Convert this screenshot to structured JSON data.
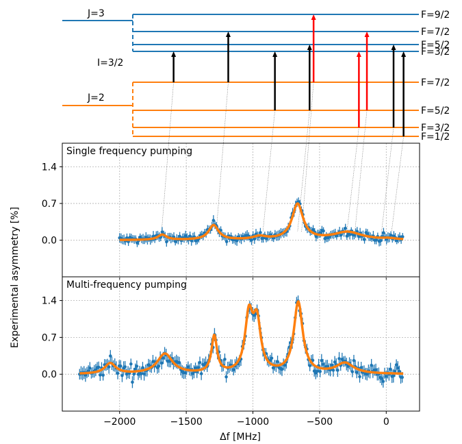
{
  "diagram": {
    "upper_term": "J=3",
    "lower_term": "J=2",
    "nuclear_spin": "I=3/2",
    "upper_levels": [
      {
        "label": "F=9/2"
      },
      {
        "label": "F=7/2"
      },
      {
        "label": "F=5/2"
      },
      {
        "label": "F=3/2"
      }
    ],
    "lower_levels": [
      {
        "label": "F=7/2"
      },
      {
        "label": "F=5/2"
      },
      {
        "label": "F=3/2"
      },
      {
        "label": "F=1/2"
      }
    ],
    "transitions": [
      {
        "from": "F=7/2",
        "to": "F=3/2",
        "freq": -1595,
        "color": "#000000"
      },
      {
        "from": "F=7/2",
        "to": "F=7/2",
        "freq": -1185,
        "color": "#000000"
      },
      {
        "from": "F=5/2",
        "to": "F=3/2",
        "freq": -835,
        "color": "#000000"
      },
      {
        "from": "F=5/2",
        "to": "F=5/2",
        "freq": -575,
        "color": "#000000"
      },
      {
        "from": "F=7/2",
        "to": "F=9/2",
        "freq": -545,
        "color": "#ff0000"
      },
      {
        "from": "F=3/2",
        "to": "F=3/2",
        "freq": -205,
        "color": "#ff0000"
      },
      {
        "from": "F=5/2",
        "to": "F=7/2",
        "freq": -145,
        "color": "#ff0000"
      },
      {
        "from": "F=3/2",
        "to": "F=5/2",
        "freq": 55,
        "color": "#000000"
      },
      {
        "from": "F=1/2",
        "to": "F=3/2",
        "freq": 130,
        "color": "#000000"
      }
    ],
    "upper_color": "#1f77b4",
    "lower_color": "#ff7f0e"
  },
  "y_axis_label": "Experimental asymmetry [%]",
  "chart_data": [
    {
      "type": "scatter",
      "title": "Single frequency pumping",
      "xlabel": "Δf [MHz]",
      "ylabel": "Experimental asymmetry [%]",
      "xlim": [
        -2430,
        250
      ],
      "ylim": [
        -0.7,
        1.85
      ],
      "xticks": [
        -2000,
        -1500,
        -1000,
        -500,
        0
      ],
      "yticks": [
        0.0,
        0.7,
        1.4
      ],
      "ytick_labels": [
        "0.0",
        "0.7",
        "1.4"
      ],
      "grid": true,
      "x_range": [
        -2000,
        130
      ],
      "fit_peaks": [
        {
          "center": -1680,
          "height": 0.1,
          "width": 40
        },
        {
          "center": -1295,
          "height": 0.28,
          "width": 45
        },
        {
          "center": -950,
          "height": 0.06,
          "width": 60
        },
        {
          "center": -665,
          "height": 0.68,
          "width": 50
        },
        {
          "center": -290,
          "height": 0.15,
          "width": 130
        },
        {
          "center": 20,
          "height": 0.02,
          "width": 60
        }
      ],
      "series": [
        {
          "kind": "data",
          "color": "#1f77b4"
        },
        {
          "kind": "fit",
          "color": "#ff7f0e"
        }
      ]
    },
    {
      "type": "scatter",
      "title": "Multi-frequency pumping",
      "xlabel": "Δf [MHz]",
      "ylabel": "Experimental asymmetry [%]",
      "xlim": [
        -2430,
        250
      ],
      "ylim": [
        -0.7,
        1.85
      ],
      "xticks": [
        -2000,
        -1500,
        -1000,
        -500,
        0
      ],
      "xtick_labels": [
        "−2000",
        "−1500",
        "−1000",
        "−500",
        "0"
      ],
      "yticks": [
        0.0,
        0.7,
        1.4
      ],
      "ytick_labels": [
        "0.0",
        "0.7",
        "1.4"
      ],
      "grid": true,
      "x_range": [
        -2300,
        130
      ],
      "fit_peaks": [
        {
          "center": -2070,
          "height": 0.2,
          "width": 50
        },
        {
          "center": -1660,
          "height": 0.38,
          "width": 70
        },
        {
          "center": -1290,
          "height": 0.7,
          "width": 25
        },
        {
          "center": -1030,
          "height": 1.05,
          "width": 35
        },
        {
          "center": -970,
          "height": 0.92,
          "width": 35
        },
        {
          "center": -660,
          "height": 1.35,
          "width": 40
        },
        {
          "center": -310,
          "height": 0.2,
          "width": 80
        }
      ],
      "series": [
        {
          "kind": "data",
          "color": "#1f77b4"
        },
        {
          "kind": "fit",
          "color": "#ff7f0e"
        }
      ]
    }
  ]
}
